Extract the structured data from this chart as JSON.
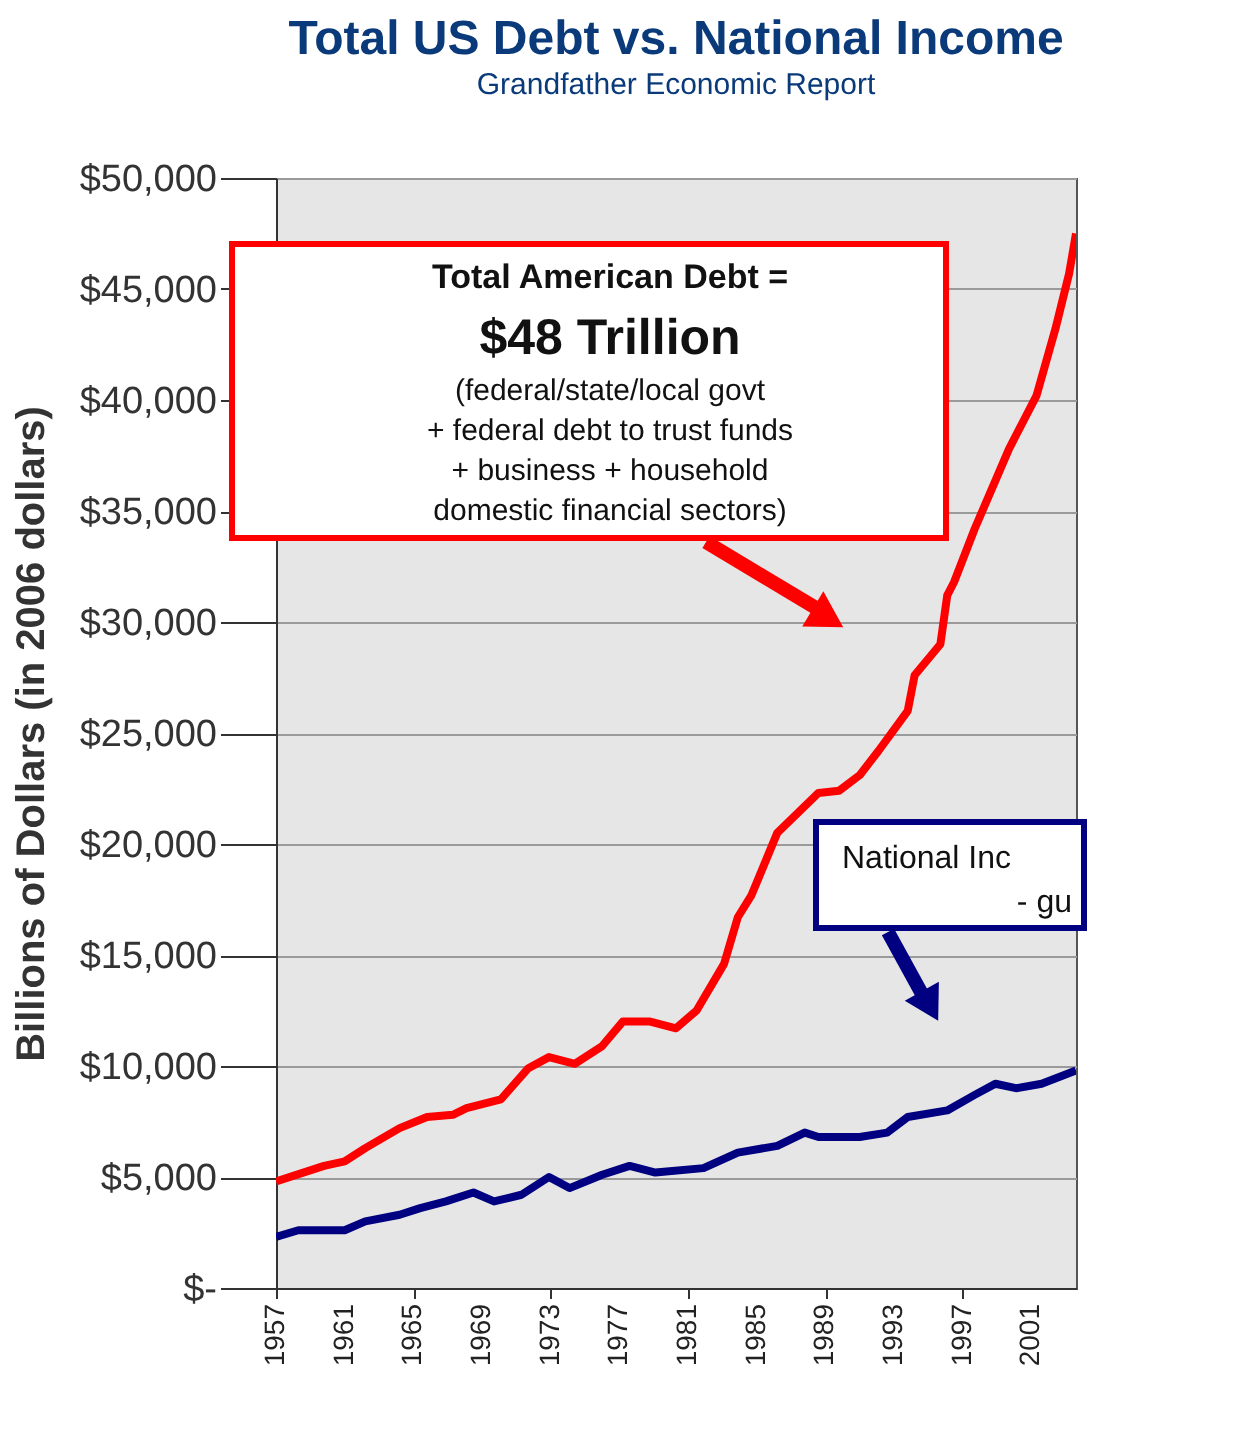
{
  "chart_data": {
    "type": "line",
    "title": "Total US Debt vs. National Income",
    "subtitle": "Grandfather Economic Report",
    "ylabel": "Billions of Dollars (in 2006 dollars)",
    "xlim": [
      1957,
      2003.6
    ],
    "xticks": [
      1957,
      1961,
      1965,
      1969,
      1973,
      1977,
      1981,
      1985,
      1989,
      1993,
      1997,
      2001
    ],
    "ylim": [
      0,
      50000
    ],
    "yticks": [
      {
        "value": 0,
        "label": "$-"
      },
      {
        "value": 5000,
        "label": "$5,000"
      },
      {
        "value": 10000,
        "label": "$10,000"
      },
      {
        "value": 15000,
        "label": "$15,000"
      },
      {
        "value": 20000,
        "label": "$20,000"
      },
      {
        "value": 25000,
        "label": "$25,000"
      },
      {
        "value": 30000,
        "label": "$30,000"
      },
      {
        "value": 35000,
        "label": "$35,000"
      },
      {
        "value": 40000,
        "label": "$40,000"
      },
      {
        "value": 45000,
        "label": "$45,000"
      },
      {
        "value": 50000,
        "label": "$50,000"
      }
    ],
    "grid": "y",
    "line_style": "solid",
    "marker": "none",
    "series": [
      {
        "color": "#ff0000",
        "x": [
          1957,
          1959.8,
          1961,
          1962.2,
          1964.2,
          1965.8,
          1967.3,
          1968.1,
          1970.1,
          1971.7,
          1972.9,
          1974.4,
          1976,
          1977.2,
          1978.8,
          1980.3,
          1981.5,
          1983.1,
          1983.9,
          1984.7,
          1986.2,
          1987.4,
          1988.6,
          1989.8,
          1991,
          1992.1,
          1993.8,
          1994.2,
          1995.7,
          1996.1,
          1996.5,
          1997.7,
          1999.7,
          2001.3,
          2002.4,
          2003.2,
          2003.6
        ],
        "values": [
          4800,
          5500,
          5700,
          6300,
          7200,
          7700,
          7800,
          8100,
          8500,
          9900,
          10400,
          10100,
          10900,
          12000,
          12000,
          11700,
          12500,
          14600,
          16700,
          17700,
          20500,
          21400,
          22300,
          22400,
          23100,
          24200,
          26000,
          27600,
          29000,
          31200,
          31800,
          34200,
          37800,
          40200,
          43200,
          45700,
          47500
        ]
      },
      {
        "color": "#000080",
        "x": [
          1957,
          1958.3,
          1961,
          1962.2,
          1964.2,
          1965.4,
          1966.9,
          1968.5,
          1969.7,
          1971.3,
          1972.9,
          1974.1,
          1976,
          1977.6,
          1979.1,
          1981.9,
          1983.9,
          1986.2,
          1987.8,
          1988.6,
          1991,
          1992.6,
          1993.8,
          1996.1,
          1997.7,
          1998.9,
          2000.1,
          2001.6,
          2003.6
        ],
        "values": [
          2300,
          2600,
          2600,
          3000,
          3300,
          3600,
          3900,
          4300,
          3900,
          4200,
          5000,
          4500,
          5100,
          5500,
          5200,
          5400,
          6100,
          6400,
          7000,
          6800,
          6800,
          7000,
          7700,
          8000,
          8700,
          9200,
          9000,
          9200,
          9800
        ]
      }
    ],
    "annotations": [
      "Total American Debt =",
      "$48 Trillion",
      "(federal/state/local govt",
      "+ federal debt to trust funds",
      "+ business + household",
      "domestic financial sectors)",
      "National Inc",
      "- gu"
    ]
  }
}
